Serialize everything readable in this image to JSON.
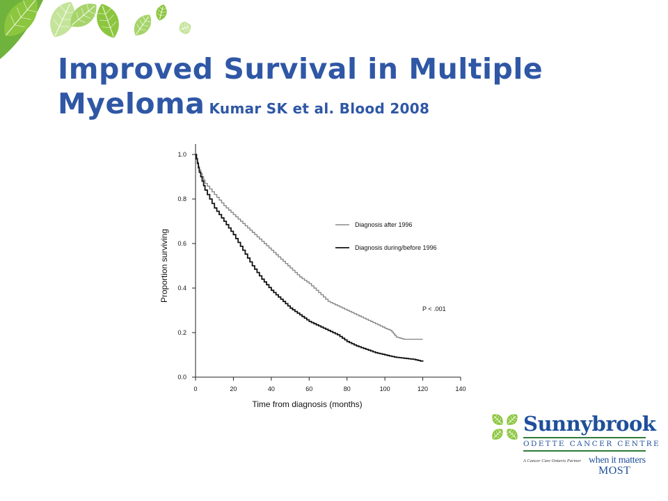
{
  "slide": {
    "title_line1": "Improved Survival in Multiple",
    "title_line2": "Myeloma",
    "citation": "Kumar SK et al. Blood 2008"
  },
  "decor": {
    "leaf_colors": [
      "#8cc63f",
      "#a6d46a",
      "#c4e49a",
      "#6fb23c"
    ],
    "leaf_icon": "leaf-icon"
  },
  "logo": {
    "brand": "Sunnybrook",
    "subtitle": "ODETTE CANCER CENTRE",
    "partner": "A Cancer Care Ontario Partner",
    "tagline_1": "when it matters",
    "tagline_2": "MOST",
    "brand_color": "#1f4f9a",
    "leaf_color": "#8cc63f"
  },
  "chart_data": {
    "type": "line",
    "xlabel": "Time from diagnosis (months)",
    "ylabel": "Proportion surviving",
    "xlim": [
      0,
      140
    ],
    "ylim": [
      0,
      1.0
    ],
    "x_ticks": [
      0,
      20,
      40,
      60,
      80,
      100,
      120,
      140
    ],
    "y_ticks": [
      0.0,
      0.2,
      0.4,
      0.6,
      0.8,
      1.0
    ],
    "x_tick_labels": [
      "0",
      "20",
      "40",
      "60",
      "80",
      "100",
      "120",
      "140"
    ],
    "y_tick_labels": [
      "0.0",
      "0.2",
      "0.4",
      "0.6",
      "0.8",
      "1.0"
    ],
    "grid": false,
    "legend_position": "right",
    "annotation": "P < .001",
    "series": [
      {
        "name": "Diagnosis after 1996",
        "color": "#888888",
        "step": true,
        "x": [
          0,
          2,
          5,
          10,
          15,
          20,
          25,
          30,
          35,
          40,
          45,
          50,
          55,
          60,
          65,
          70,
          75,
          80,
          85,
          90,
          95,
          100,
          103,
          106,
          110,
          115,
          120
        ],
        "y": [
          1.0,
          0.93,
          0.87,
          0.82,
          0.77,
          0.73,
          0.69,
          0.65,
          0.61,
          0.57,
          0.53,
          0.49,
          0.45,
          0.42,
          0.38,
          0.34,
          0.32,
          0.3,
          0.28,
          0.26,
          0.24,
          0.22,
          0.21,
          0.18,
          0.17,
          0.17,
          0.17
        ]
      },
      {
        "name": "Diagnosis during/before 1996",
        "color": "#111111",
        "step": true,
        "x": [
          0,
          2,
          5,
          10,
          15,
          20,
          25,
          30,
          35,
          40,
          45,
          50,
          55,
          60,
          65,
          70,
          75,
          80,
          85,
          90,
          95,
          100,
          105,
          110,
          115,
          120
        ],
        "y": [
          1.0,
          0.92,
          0.84,
          0.76,
          0.7,
          0.64,
          0.57,
          0.5,
          0.44,
          0.39,
          0.35,
          0.31,
          0.28,
          0.25,
          0.23,
          0.21,
          0.19,
          0.16,
          0.14,
          0.125,
          0.11,
          0.1,
          0.09,
          0.085,
          0.08,
          0.07
        ]
      }
    ]
  }
}
